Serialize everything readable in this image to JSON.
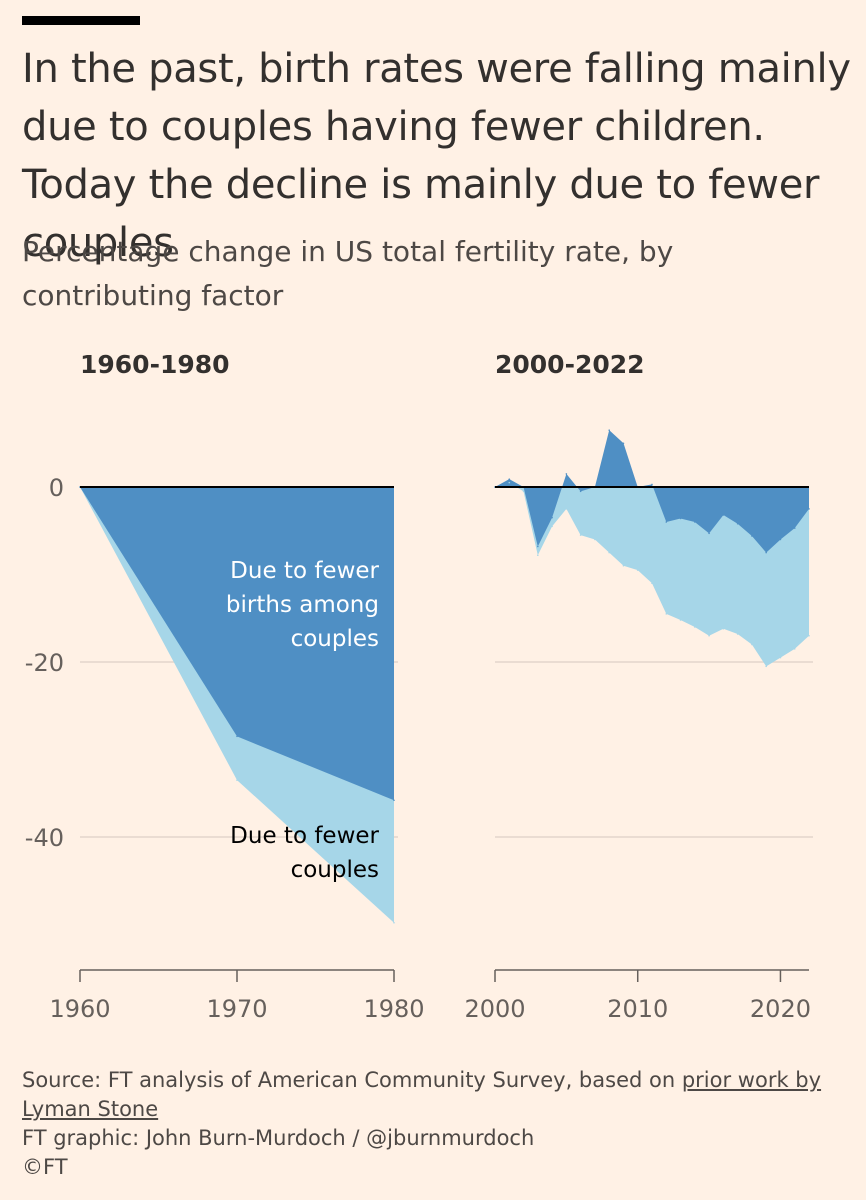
{
  "header": {
    "title": "In the past, birth rates were falling mainly due to couples having fewer children. Today the decline is mainly due to fewer couples",
    "subtitle": "Percentage change in US total fertility rate, by contributing factor"
  },
  "colors": {
    "background": "#fff1e5",
    "fewer_births": "#4f8fc4",
    "fewer_couples": "#a6d6e8",
    "zero_line": "#000000",
    "gridline": "#e3d6cb"
  },
  "chart_data": [
    {
      "type": "area",
      "title": "1960-1980",
      "x": [
        1960,
        1970,
        1980
      ],
      "series": [
        {
          "name": "Due to fewer births among couples",
          "values": [
            0,
            -28.5,
            -35.8
          ]
        },
        {
          "name": "Due to fewer couples",
          "values": [
            0,
            -33.5,
            -49.8
          ]
        }
      ],
      "xticks": [
        "1960",
        "1970",
        "1980"
      ],
      "yticks": [
        "0",
        "-20",
        "-40"
      ],
      "xlim": [
        1960,
        1980
      ],
      "ylim": [
        -55,
        10
      ],
      "grid": true,
      "annotations": [
        "Due to fewer births among couples",
        "Due to fewer couples"
      ]
    },
    {
      "type": "area",
      "title": "2000-2022",
      "x": [
        2000,
        2001,
        2002,
        2003,
        2004,
        2005,
        2006,
        2007,
        2008,
        2009,
        2010,
        2011,
        2012,
        2013,
        2014,
        2015,
        2016,
        2017,
        2018,
        2019,
        2020,
        2021,
        2022
      ],
      "series": [
        {
          "name": "Due to fewer births among couples",
          "values": [
            0,
            0.9,
            0,
            -6.8,
            -3.5,
            1.5,
            -0.5,
            0,
            6.5,
            5,
            0,
            0.3,
            -4,
            -3.6,
            -4,
            -5.3,
            -3.2,
            -4.2,
            -5.6,
            -7.5,
            -6,
            -4.7,
            -2.5
          ]
        },
        {
          "name": "Due to fewer couples",
          "values": [
            0,
            0.5,
            -0.5,
            -7.8,
            -4.5,
            -2.5,
            -5.5,
            -6,
            -7.5,
            -9,
            -9.5,
            -11,
            -14.5,
            -15.2,
            -16,
            -17,
            -16.2,
            -16.8,
            -18,
            -20.5,
            -19.5,
            -18.5,
            -17
          ]
        }
      ],
      "xticks": [
        "2000",
        "2010",
        "2020"
      ],
      "xlim": [
        2000,
        2022
      ],
      "ylim": [
        -55,
        10
      ],
      "grid": true
    }
  ],
  "annotations": {
    "births": [
      "Due to fewer",
      "births among",
      "couples"
    ],
    "couples": [
      "Due to fewer",
      "couples"
    ]
  },
  "footer": {
    "source_prefix": "Source: FT analysis of American Community Survey, based on ",
    "source_link": "prior work by Lyman Stone",
    "credit": "FT graphic: John Burn-Murdoch / @jburnmurdoch",
    "copyright": "©FT"
  }
}
